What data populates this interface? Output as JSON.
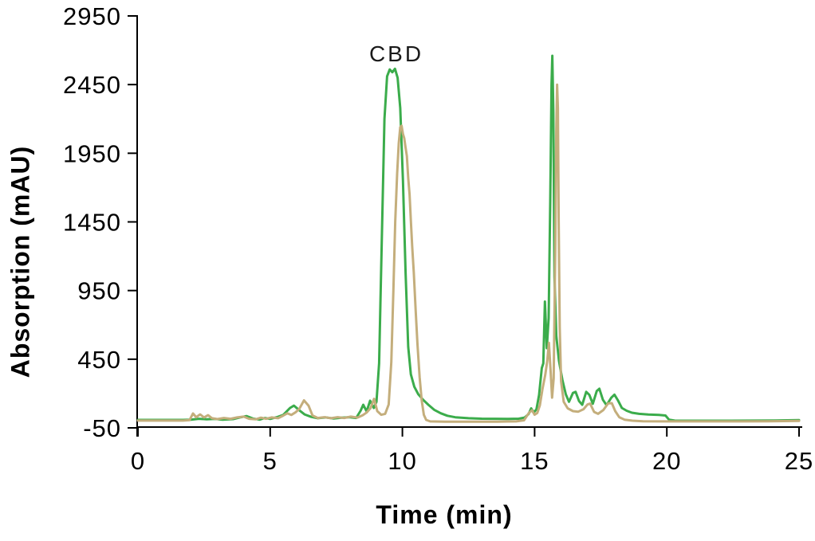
{
  "figure": {
    "annotation_label": "CBD",
    "colors": {
      "green_trace": "#3BAC4B",
      "tan_trace": "#C4AE7C",
      "axis": "#000000",
      "text": "#000000"
    }
  },
  "chart_data": {
    "type": "line",
    "title": "",
    "xlabel": "Time (min)",
    "ylabel": "Absorption (mAU)",
    "xlim": [
      0,
      25
    ],
    "ylim": [
      -50,
      2950
    ],
    "x_ticks": [
      0,
      5,
      10,
      15,
      20,
      25
    ],
    "y_ticks": [
      2950,
      2450,
      1950,
      1450,
      950,
      450,
      -50
    ],
    "grid": false,
    "legend": null,
    "annotations": [
      {
        "text": "CBD",
        "x": 9.75,
        "y": 2700
      }
    ],
    "series": [
      {
        "name": "green-trace",
        "color": "#3BAC4B",
        "points": [
          [
            0,
            8
          ],
          [
            0.9,
            8
          ],
          [
            1.7,
            8
          ],
          [
            2.0,
            10
          ],
          [
            2.3,
            16
          ],
          [
            2.6,
            12
          ],
          [
            2.9,
            15
          ],
          [
            3.2,
            10
          ],
          [
            3.6,
            14
          ],
          [
            3.9,
            28
          ],
          [
            4.1,
            36
          ],
          [
            4.35,
            18
          ],
          [
            4.6,
            10
          ],
          [
            4.8,
            22
          ],
          [
            5.0,
            15
          ],
          [
            5.25,
            28
          ],
          [
            5.5,
            45
          ],
          [
            5.75,
            95
          ],
          [
            5.9,
            112
          ],
          [
            6.1,
            78
          ],
          [
            6.3,
            48
          ],
          [
            6.55,
            30
          ],
          [
            6.8,
            20
          ],
          [
            7.1,
            26
          ],
          [
            7.4,
            18
          ],
          [
            7.7,
            24
          ],
          [
            8.0,
            28
          ],
          [
            8.25,
            22
          ],
          [
            8.42,
            75
          ],
          [
            8.52,
            118
          ],
          [
            8.65,
            70
          ],
          [
            8.78,
            148
          ],
          [
            8.92,
            95
          ],
          [
            9.02,
            140
          ],
          [
            9.12,
            420
          ],
          [
            9.22,
            1300
          ],
          [
            9.32,
            2200
          ],
          [
            9.42,
            2510
          ],
          [
            9.52,
            2560
          ],
          [
            9.62,
            2540
          ],
          [
            9.72,
            2565
          ],
          [
            9.82,
            2500
          ],
          [
            9.92,
            2280
          ],
          [
            10.02,
            1750
          ],
          [
            10.12,
            1080
          ],
          [
            10.22,
            540
          ],
          [
            10.32,
            340
          ],
          [
            10.45,
            250
          ],
          [
            10.6,
            195
          ],
          [
            10.78,
            155
          ],
          [
            10.98,
            118
          ],
          [
            11.2,
            82
          ],
          [
            11.45,
            56
          ],
          [
            11.7,
            38
          ],
          [
            12.0,
            27
          ],
          [
            12.5,
            20
          ],
          [
            13.0,
            17
          ],
          [
            13.5,
            16
          ],
          [
            14.0,
            15
          ],
          [
            14.4,
            17
          ],
          [
            14.62,
            25
          ],
          [
            14.77,
            50
          ],
          [
            14.87,
            92
          ],
          [
            14.97,
            62
          ],
          [
            15.07,
            85
          ],
          [
            15.17,
            190
          ],
          [
            15.27,
            385
          ],
          [
            15.33,
            420
          ],
          [
            15.39,
            870
          ],
          [
            15.46,
            530
          ],
          [
            15.53,
            750
          ],
          [
            15.59,
            1600
          ],
          [
            15.64,
            2450
          ],
          [
            15.67,
            2660
          ],
          [
            15.71,
            2250
          ],
          [
            15.75,
            1050
          ],
          [
            15.82,
            620
          ],
          [
            15.92,
            440
          ],
          [
            16.05,
            300
          ],
          [
            16.18,
            195
          ],
          [
            16.3,
            140
          ],
          [
            16.45,
            205
          ],
          [
            16.55,
            212
          ],
          [
            16.68,
            145
          ],
          [
            16.8,
            118
          ],
          [
            16.95,
            212
          ],
          [
            17.07,
            190
          ],
          [
            17.2,
            126
          ],
          [
            17.35,
            218
          ],
          [
            17.45,
            235
          ],
          [
            17.58,
            155
          ],
          [
            17.72,
            115
          ],
          [
            17.9,
            170
          ],
          [
            18.02,
            192
          ],
          [
            18.15,
            150
          ],
          [
            18.3,
            95
          ],
          [
            18.48,
            75
          ],
          [
            18.68,
            60
          ],
          [
            18.95,
            52
          ],
          [
            19.3,
            47
          ],
          [
            19.7,
            44
          ],
          [
            19.95,
            40
          ],
          [
            20.08,
            10
          ],
          [
            20.3,
            3
          ],
          [
            20.8,
            2
          ],
          [
            21.6,
            2
          ],
          [
            22.4,
            2
          ],
          [
            23.2,
            3
          ],
          [
            24.1,
            4
          ],
          [
            25,
            6
          ]
        ]
      },
      {
        "name": "tan-trace",
        "color": "#C4AE7C",
        "points": [
          [
            0,
            3
          ],
          [
            0.9,
            3
          ],
          [
            1.7,
            3
          ],
          [
            1.95,
            6
          ],
          [
            2.08,
            55
          ],
          [
            2.2,
            28
          ],
          [
            2.35,
            48
          ],
          [
            2.5,
            26
          ],
          [
            2.65,
            42
          ],
          [
            2.8,
            20
          ],
          [
            3.0,
            14
          ],
          [
            3.25,
            22
          ],
          [
            3.5,
            16
          ],
          [
            3.75,
            26
          ],
          [
            4.0,
            32
          ],
          [
            4.2,
            16
          ],
          [
            4.45,
            12
          ],
          [
            4.65,
            24
          ],
          [
            4.85,
            16
          ],
          [
            5.05,
            26
          ],
          [
            5.3,
            20
          ],
          [
            5.5,
            40
          ],
          [
            5.65,
            56
          ],
          [
            5.8,
            44
          ],
          [
            5.95,
            62
          ],
          [
            6.1,
            88
          ],
          [
            6.28,
            150
          ],
          [
            6.45,
            112
          ],
          [
            6.6,
            40
          ],
          [
            6.8,
            22
          ],
          [
            7.05,
            28
          ],
          [
            7.3,
            20
          ],
          [
            7.55,
            28
          ],
          [
            7.8,
            22
          ],
          [
            8.05,
            32
          ],
          [
            8.3,
            25
          ],
          [
            8.5,
            42
          ],
          [
            8.65,
            62
          ],
          [
            8.8,
            95
          ],
          [
            8.93,
            162
          ],
          [
            9.05,
            72
          ],
          [
            9.2,
            45
          ],
          [
            9.35,
            52
          ],
          [
            9.48,
            120
          ],
          [
            9.58,
            430
          ],
          [
            9.66,
            950
          ],
          [
            9.73,
            1450
          ],
          [
            9.8,
            1800
          ],
          [
            9.86,
            2020
          ],
          [
            9.92,
            2140
          ],
          [
            9.97,
            2150
          ],
          [
            10.02,
            2090
          ],
          [
            10.07,
            2060
          ],
          [
            10.12,
            1990
          ],
          [
            10.17,
            1930
          ],
          [
            10.22,
            1770
          ],
          [
            10.27,
            1650
          ],
          [
            10.32,
            1460
          ],
          [
            10.37,
            1270
          ],
          [
            10.43,
            1080
          ],
          [
            10.5,
            810
          ],
          [
            10.57,
            560
          ],
          [
            10.65,
            320
          ],
          [
            10.73,
            150
          ],
          [
            10.81,
            45
          ],
          [
            10.9,
            8
          ],
          [
            11.05,
            -3
          ],
          [
            11.6,
            -5
          ],
          [
            12.6,
            -5
          ],
          [
            13.6,
            -5
          ],
          [
            14.3,
            -3
          ],
          [
            14.6,
            5
          ],
          [
            14.78,
            58
          ],
          [
            14.9,
            78
          ],
          [
            15.0,
            46
          ],
          [
            15.1,
            58
          ],
          [
            15.2,
            115
          ],
          [
            15.3,
            235
          ],
          [
            15.4,
            335
          ],
          [
            15.48,
            440
          ],
          [
            15.54,
            570
          ],
          [
            15.6,
            380
          ],
          [
            15.66,
            170
          ],
          [
            15.72,
            310
          ],
          [
            15.78,
            1250
          ],
          [
            15.82,
            2120
          ],
          [
            15.85,
            2450
          ],
          [
            15.88,
            2280
          ],
          [
            15.91,
            1450
          ],
          [
            15.95,
            680
          ],
          [
            16.0,
            290
          ],
          [
            16.1,
            140
          ],
          [
            16.25,
            92
          ],
          [
            16.45,
            72
          ],
          [
            16.65,
            68
          ],
          [
            16.85,
            86
          ],
          [
            17.0,
            120
          ],
          [
            17.1,
            127
          ],
          [
            17.25,
            66
          ],
          [
            17.4,
            52
          ],
          [
            17.6,
            80
          ],
          [
            17.78,
            128
          ],
          [
            17.92,
            130
          ],
          [
            18.05,
            72
          ],
          [
            18.2,
            28
          ],
          [
            18.4,
            10
          ],
          [
            18.7,
            2
          ],
          [
            19.1,
            -2
          ],
          [
            19.8,
            -3
          ],
          [
            20.8,
            -3
          ],
          [
            21.8,
            -3
          ],
          [
            22.8,
            -3
          ],
          [
            23.8,
            -2
          ],
          [
            25,
            1
          ]
        ]
      }
    ]
  }
}
